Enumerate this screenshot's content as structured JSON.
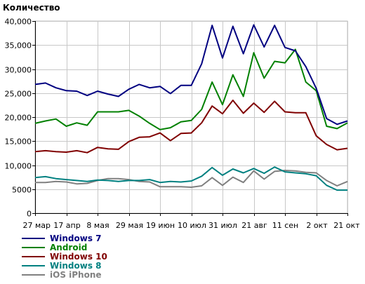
{
  "chart_data": {
    "type": "line",
    "title": "Количество",
    "xlabel": "",
    "ylabel": "",
    "ylim": [
      0,
      40000
    ],
    "y_ticks": [
      0,
      5000,
      10000,
      15000,
      20000,
      25000,
      30000,
      35000,
      40000
    ],
    "y_tick_labels": [
      "0",
      "5000",
      "10,000",
      "15,000",
      "20,000",
      "25,000",
      "30,000",
      "35,000",
      "40,000"
    ],
    "x_tick_labels": [
      "27 мар",
      "17 апр",
      "8 мая",
      "29 мая",
      "19 июн",
      "10 июл",
      "31 июл",
      "21 авг",
      "11 сен",
      "2 окт",
      "21 окт"
    ],
    "x_tick_index": [
      0,
      3,
      6,
      9,
      12,
      15,
      18,
      21,
      24,
      27,
      30
    ],
    "grid": true,
    "legend": "bottom-left",
    "series": [
      {
        "name": "Windows 7",
        "color": "#000080",
        "values": [
          26800,
          27100,
          26100,
          25500,
          25400,
          24500,
          25400,
          24800,
          24300,
          25800,
          26800,
          26100,
          26400,
          24900,
          26600,
          26600,
          31100,
          39100,
          32300,
          38900,
          33200,
          39200,
          34600,
          39100,
          34500,
          33800,
          30500,
          26000,
          19700,
          18500,
          19200
        ]
      },
      {
        "name": "Android",
        "color": "#008000",
        "values": [
          18700,
          19200,
          19600,
          18100,
          18800,
          18300,
          21100,
          21100,
          21100,
          21400,
          20200,
          18700,
          17400,
          17800,
          19000,
          19300,
          21600,
          27300,
          22600,
          28800,
          24300,
          33400,
          28100,
          31600,
          31300,
          34100,
          27300,
          25500,
          18100,
          17600,
          18800
        ]
      },
      {
        "name": "Windows 10",
        "color": "#800000",
        "values": [
          12800,
          13000,
          12800,
          12700,
          13000,
          12600,
          13700,
          13400,
          13300,
          14900,
          15800,
          15900,
          16700,
          15100,
          16600,
          16700,
          18800,
          22300,
          20700,
          23500,
          20800,
          22900,
          21000,
          23300,
          21100,
          20900,
          20900,
          16100,
          14300,
          13200,
          13500
        ]
      },
      {
        "name": "Windows 8",
        "color": "#008080",
        "values": [
          7400,
          7600,
          7200,
          7000,
          6800,
          6600,
          6900,
          6800,
          6600,
          6800,
          6800,
          7000,
          6400,
          6600,
          6500,
          6700,
          7700,
          9500,
          7900,
          9200,
          8400,
          9300,
          8300,
          9600,
          8600,
          8400,
          8200,
          7800,
          5800,
          4800,
          4800
        ]
      },
      {
        "name": "iOS iPhone",
        "color": "#808080",
        "values": [
          6400,
          6400,
          6600,
          6500,
          6100,
          6200,
          6800,
          7200,
          7200,
          7000,
          6600,
          6500,
          5500,
          5500,
          5500,
          5400,
          5700,
          7400,
          5800,
          7500,
          6400,
          8800,
          7100,
          8700,
          8900,
          8800,
          8500,
          8400,
          6800,
          5700,
          6600
        ]
      }
    ]
  }
}
